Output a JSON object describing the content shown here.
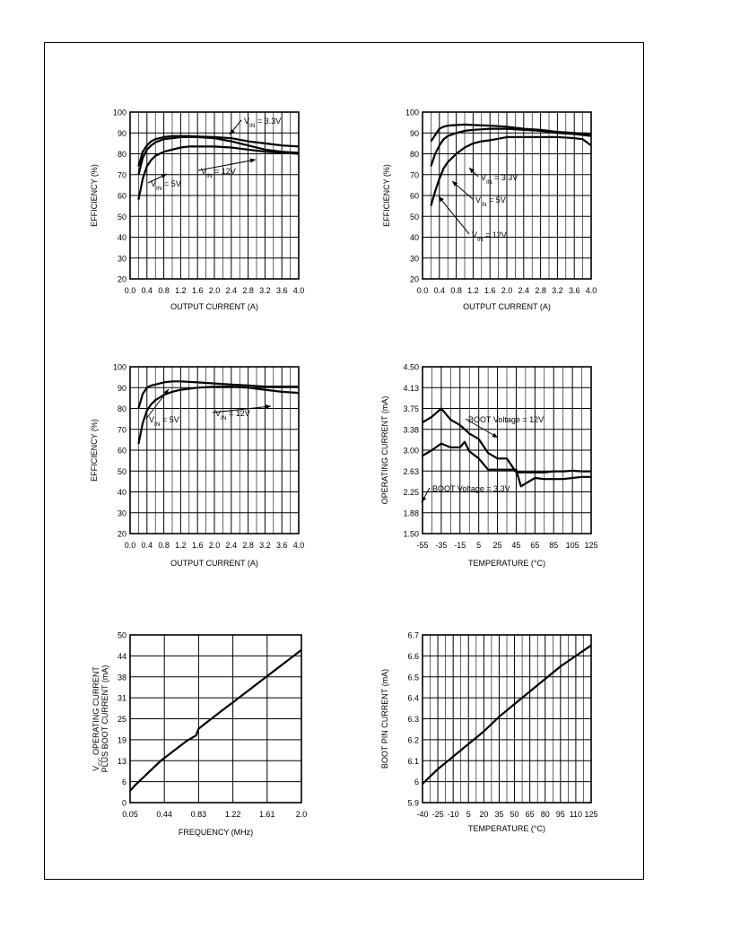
{
  "chart_data": [
    {
      "type": "line",
      "xlabel": "OUTPUT CURRENT (A)",
      "ylabel": "EFFICIENCY (%)",
      "xlim": [
        0,
        4
      ],
      "ylim": [
        20,
        100
      ],
      "xticks": [
        "0.0",
        "0.4",
        "0.8",
        "1.2",
        "1.6",
        "2.0",
        "2.4",
        "2.8",
        "3.2",
        "3.6",
        "4.0"
      ],
      "yticks": [
        "20",
        "30",
        "40",
        "50",
        "60",
        "70",
        "80",
        "90",
        "100"
      ],
      "grid": true,
      "series": [
        {
          "name": "V_IN = 3.3V",
          "label": {
            "main": "V",
            "sub": "IN",
            "rest": " = 3.3V"
          },
          "x": [
            0.2,
            0.3,
            0.4,
            0.5,
            0.6,
            0.8,
            1.0,
            1.2,
            1.4,
            1.6,
            2.0,
            2.4,
            2.8,
            3.2,
            3.6,
            4.0
          ],
          "y": [
            74,
            81,
            84,
            86,
            87,
            88,
            88.5,
            88.5,
            88.5,
            88.3,
            88,
            87.5,
            86,
            85,
            84,
            83.5
          ]
        },
        {
          "name": "V_IN = 5V",
          "label": {
            "main": "V",
            "sub": "IN",
            "rest": " = 5V"
          },
          "x": [
            0.2,
            0.3,
            0.4,
            0.5,
            0.6,
            0.8,
            1.0,
            1.2,
            1.6,
            2.0,
            2.4,
            2.8,
            3.2,
            3.6,
            4.0
          ],
          "y": [
            70,
            78,
            82,
            84,
            85.5,
            87,
            87.5,
            88,
            88,
            87.5,
            86,
            84,
            82,
            81,
            80.5
          ]
        },
        {
          "name": "V_IN = 12V",
          "label": {
            "main": "V",
            "sub": "IN",
            "rest": " = 12V"
          },
          "x": [
            0.2,
            0.3,
            0.4,
            0.5,
            0.6,
            0.8,
            1.0,
            1.2,
            1.4,
            1.6,
            2.0,
            2.4,
            2.8,
            3.2,
            3.6,
            4.0
          ],
          "y": [
            58,
            68,
            74,
            77,
            79,
            81,
            82,
            83,
            83.5,
            83.5,
            83.5,
            83,
            82,
            81,
            80.5,
            80
          ]
        }
      ]
    },
    {
      "type": "line",
      "xlabel": "OUTPUT CURRENT (A)",
      "ylabel": "EFFICIENCY (%)",
      "xlim": [
        0,
        4
      ],
      "ylim": [
        20,
        100
      ],
      "xticks": [
        "0.0",
        "0.4",
        "0.8",
        "1.2",
        "1.6",
        "2.0",
        "2.4",
        "2.8",
        "3.2",
        "3.6",
        "4.0"
      ],
      "yticks": [
        "20",
        "30",
        "40",
        "50",
        "60",
        "70",
        "80",
        "90",
        "100"
      ],
      "grid": true,
      "series": [
        {
          "name": "V_IN = 3.3V",
          "label": {
            "main": "V",
            "sub": "IN",
            "rest": " = 3.3V"
          },
          "x": [
            0.2,
            0.3,
            0.4,
            0.5,
            0.6,
            0.8,
            1.0,
            1.2,
            1.6,
            2.0,
            2.4,
            2.8,
            3.2,
            3.6,
            4.0
          ],
          "y": [
            86,
            89,
            92,
            93,
            93.5,
            93.8,
            94,
            93.8,
            93.5,
            93,
            92,
            91.5,
            90.5,
            90,
            89.5
          ]
        },
        {
          "name": "V_IN = 5V",
          "label": {
            "main": "V",
            "sub": "IN",
            "rest": " = 5V"
          },
          "x": [
            0.2,
            0.3,
            0.4,
            0.5,
            0.6,
            0.8,
            1.0,
            1.2,
            1.6,
            2.0,
            2.4,
            2.8,
            3.2,
            3.6,
            4.0
          ],
          "y": [
            74,
            80,
            84,
            87,
            88.5,
            90,
            91,
            91.5,
            92,
            92,
            91.5,
            91,
            90,
            89.5,
            88.5
          ]
        },
        {
          "name": "V_IN = 12V",
          "label": {
            "main": "V",
            "sub": "IN",
            "rest": " = 12V"
          },
          "x": [
            0.2,
            0.3,
            0.4,
            0.5,
            0.6,
            0.8,
            1.0,
            1.2,
            1.4,
            1.6,
            2.0,
            2.4,
            2.8,
            3.2,
            3.6,
            3.8,
            4.0
          ],
          "y": [
            55,
            62,
            68,
            73,
            76,
            80,
            83,
            85,
            86,
            86.5,
            88,
            88,
            88,
            88,
            87.5,
            87,
            84
          ]
        }
      ]
    },
    {
      "type": "line",
      "xlabel": "OUTPUT CURRENT (A)",
      "ylabel": "EFFICIENCY (%)",
      "xlim": [
        0,
        4
      ],
      "ylim": [
        20,
        100
      ],
      "xticks": [
        "0.0",
        "0.4",
        "0.8",
        "1.2",
        "1.6",
        "2.0",
        "2.4",
        "2.8",
        "3.2",
        "3.6",
        "4.0"
      ],
      "yticks": [
        "20",
        "30",
        "40",
        "50",
        "60",
        "70",
        "80",
        "90",
        "100"
      ],
      "grid": true,
      "series": [
        {
          "name": "V_IN = 5V",
          "label": {
            "main": "V",
            "sub": "IN",
            "rest": " = 5V"
          },
          "x": [
            0.2,
            0.3,
            0.4,
            0.5,
            0.6,
            0.8,
            1.0,
            1.2,
            1.6,
            2.0,
            2.4,
            2.8,
            3.2,
            3.6,
            4.0
          ],
          "y": [
            80,
            87,
            90,
            91,
            91.5,
            92.5,
            93,
            93,
            92.5,
            92,
            91.5,
            91,
            90.5,
            90.5,
            90.5
          ]
        },
        {
          "name": "V_IN = 12V",
          "label": {
            "main": "V",
            "sub": "IN",
            "rest": " = 12V"
          },
          "x": [
            0.2,
            0.3,
            0.4,
            0.5,
            0.6,
            0.8,
            1.0,
            1.2,
            1.6,
            2.0,
            2.4,
            2.8,
            3.2,
            3.6,
            4.0
          ],
          "y": [
            63,
            73,
            79,
            82,
            84,
            86.5,
            88,
            89,
            90,
            90.5,
            90.5,
            90,
            89,
            88,
            87.5
          ]
        }
      ]
    },
    {
      "type": "line",
      "xlabel": "TEMPERATURE (°C)",
      "ylabel": "OPERATING CURRENT (mA)",
      "xlim": [
        -55,
        125
      ],
      "ylim": [
        1.5,
        4.5
      ],
      "xticks": [
        "-55",
        "-35",
        "-15",
        "5",
        "25",
        "45",
        "65",
        "85",
        "105",
        "125"
      ],
      "yticks": [
        "1.50",
        "1.88",
        "2.25",
        "2.63",
        "3.00",
        "3.38",
        "3.75",
        "4.13",
        "4.50"
      ],
      "grid": true,
      "series": [
        {
          "name": "BOOT Voltage = 12V",
          "label": {
            "main": "BOOT Voltage = 12V",
            "sub": "",
            "rest": ""
          },
          "x": [
            -55,
            -45,
            -35,
            -25,
            -15,
            -5,
            5,
            15,
            25,
            35,
            45,
            55,
            65,
            75,
            85,
            95,
            105,
            115,
            125
          ],
          "y": [
            3.5,
            3.6,
            3.75,
            3.55,
            3.45,
            3.3,
            3.2,
            2.95,
            2.85,
            2.85,
            2.6,
            2.6,
            2.6,
            2.6,
            2.62,
            2.62,
            2.63,
            2.62,
            2.62
          ]
        },
        {
          "name": "BOOT Voltage = 3.3V",
          "label": {
            "main": "BOOT Voltage = 3.3V",
            "sub": "",
            "rest": ""
          },
          "x": [
            -55,
            -45,
            -35,
            -25,
            -15,
            -10,
            -5,
            5,
            15,
            25,
            35,
            45,
            50,
            55,
            65,
            75,
            85,
            95,
            105,
            115,
            125
          ],
          "y": [
            2.9,
            3.0,
            3.12,
            3.05,
            3.05,
            3.15,
            2.98,
            2.85,
            2.65,
            2.65,
            2.65,
            2.65,
            2.35,
            2.4,
            2.5,
            2.48,
            2.48,
            2.48,
            2.5,
            2.52,
            2.52
          ]
        }
      ]
    },
    {
      "type": "line",
      "xlabel": "FREQUENCY (MHz)",
      "ylabel": "V_CC OPERATING CURRENT PLUS BOOT CURRENT (mA)",
      "ylabel_lines": [
        {
          "main": "V",
          "sub": "CC",
          "rest": " OPERATING CURRENT"
        },
        {
          "main": "PLUS BOOT CURRENT (mA)",
          "sub": "",
          "rest": ""
        }
      ],
      "xlim": [
        0.05,
        2.0
      ],
      "ylim": [
        0,
        50
      ],
      "xticks": [
        "0.05",
        "0.44",
        "0.83",
        "1.22",
        "1.61",
        "2.0"
      ],
      "yticks": [
        "0",
        "6",
        "13",
        "19",
        "25",
        "31",
        "38",
        "44",
        "50"
      ],
      "grid": true,
      "series": [
        {
          "name": "",
          "x": [
            0.05,
            0.1,
            0.2,
            0.3,
            0.4,
            0.5,
            0.6,
            0.7,
            0.8,
            0.83,
            0.9,
            1.0,
            1.1,
            1.2,
            1.3,
            1.4,
            1.5,
            1.6,
            1.7,
            1.8,
            1.9,
            2.0
          ],
          "y": [
            3.5,
            5,
            7.5,
            10,
            12.5,
            14.5,
            16.5,
            18.5,
            20,
            22,
            23.5,
            25.5,
            27.5,
            29.5,
            31.5,
            33.5,
            35.5,
            37.5,
            39.5,
            41.5,
            43.5,
            45.5
          ]
        }
      ]
    },
    {
      "type": "line",
      "xlabel": "TEMPERATURE (°C)",
      "ylabel": "BOOT PIN CURRENT (mA)",
      "xlim": [
        -40,
        125
      ],
      "ylim": [
        5.9,
        6.7
      ],
      "xticks": [
        "-40",
        "-25",
        "-10",
        "5",
        "20",
        "35",
        "50",
        "65",
        "80",
        "95",
        "110",
        "125"
      ],
      "yticks": [
        "5.9",
        "6",
        "6.1",
        "6.2",
        "6.3",
        "6.4",
        "6.5",
        "6.6",
        "6.7"
      ],
      "grid": true,
      "series": [
        {
          "name": "",
          "x": [
            -40,
            -25,
            -10,
            5,
            20,
            35,
            50,
            65,
            80,
            95,
            110,
            125
          ],
          "y": [
            5.99,
            6.06,
            6.12,
            6.18,
            6.24,
            6.31,
            6.37,
            6.43,
            6.49,
            6.55,
            6.6,
            6.65
          ]
        }
      ]
    }
  ]
}
